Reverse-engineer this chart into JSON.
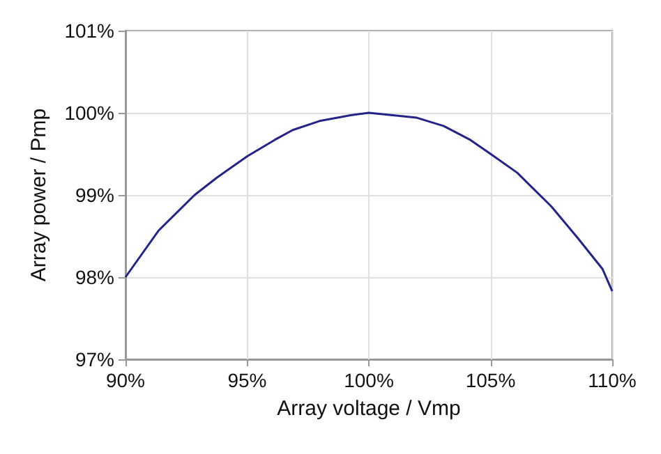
{
  "chart_data": {
    "type": "line",
    "xlabel": "Array voltage / Vmp",
    "ylabel": "Array power / Pmp",
    "x": [
      90,
      91.37,
      92.84,
      93.75,
      95,
      96.13,
      96.87,
      97.97,
      99.25,
      100,
      101.97,
      103.07,
      104.17,
      105,
      106.1,
      107.5,
      108.6,
      109.6,
      110
    ],
    "series": [
      {
        "color": "#23238a",
        "values": [
          98.0,
          98.57,
          99.0,
          99.21,
          99.47,
          99.67,
          99.79,
          99.9,
          99.97,
          100,
          99.94,
          99.84,
          99.67,
          99.5,
          99.27,
          98.86,
          98.47,
          98.1,
          97.83
        ]
      }
    ],
    "xlim": [
      90,
      110
    ],
    "xticks": [
      {
        "value": 90,
        "label": "90%"
      },
      {
        "value": 95,
        "label": "95%"
      },
      {
        "value": 100,
        "label": "100%"
      },
      {
        "value": 105,
        "label": "105%"
      },
      {
        "value": 110,
        "label": "110%"
      }
    ],
    "ylim": [
      97,
      101
    ],
    "yticks": [
      {
        "value": 97,
        "label": "97%"
      },
      {
        "value": 98,
        "label": "98%"
      },
      {
        "value": 99,
        "label": "99%"
      },
      {
        "value": 100,
        "label": "100%"
      },
      {
        "value": 101,
        "label": "101%"
      }
    ],
    "grid": true,
    "marker": "none",
    "line_style": "solid"
  }
}
